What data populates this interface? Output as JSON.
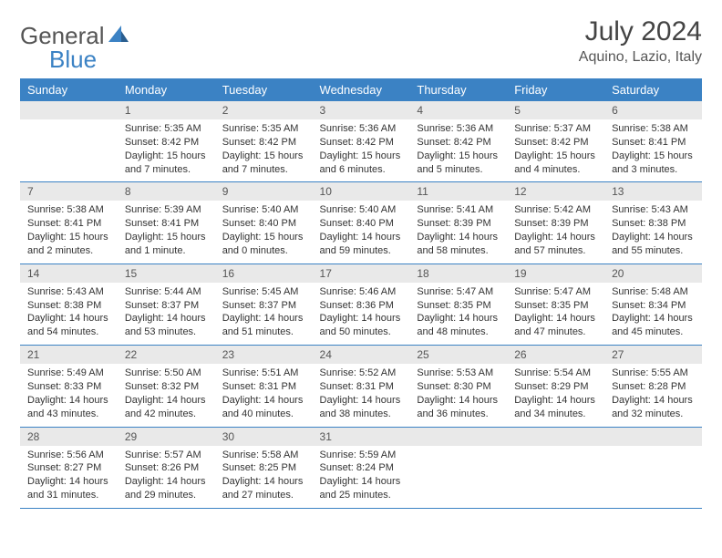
{
  "logo": {
    "text1": "General",
    "text2": "Blue"
  },
  "title": "July 2024",
  "location": "Aquino, Lazio, Italy",
  "colors": {
    "header_bg": "#3b82c4",
    "header_text": "#ffffff",
    "daynum_bg": "#e9e9e9",
    "row_border": "#3b82c4",
    "logo_blue": "#3b82c4",
    "body_text": "#333333"
  },
  "fonts": {
    "title_size": 30,
    "location_size": 16,
    "dayheader_size": 13,
    "daynum_size": 12,
    "content_size": 11
  },
  "day_headers": [
    "Sunday",
    "Monday",
    "Tuesday",
    "Wednesday",
    "Thursday",
    "Friday",
    "Saturday"
  ],
  "weeks": [
    [
      null,
      {
        "n": "1",
        "sunrise": "5:35 AM",
        "sunset": "8:42 PM",
        "daylight": "15 hours and 7 minutes."
      },
      {
        "n": "2",
        "sunrise": "5:35 AM",
        "sunset": "8:42 PM",
        "daylight": "15 hours and 7 minutes."
      },
      {
        "n": "3",
        "sunrise": "5:36 AM",
        "sunset": "8:42 PM",
        "daylight": "15 hours and 6 minutes."
      },
      {
        "n": "4",
        "sunrise": "5:36 AM",
        "sunset": "8:42 PM",
        "daylight": "15 hours and 5 minutes."
      },
      {
        "n": "5",
        "sunrise": "5:37 AM",
        "sunset": "8:42 PM",
        "daylight": "15 hours and 4 minutes."
      },
      {
        "n": "6",
        "sunrise": "5:38 AM",
        "sunset": "8:41 PM",
        "daylight": "15 hours and 3 minutes."
      }
    ],
    [
      {
        "n": "7",
        "sunrise": "5:38 AM",
        "sunset": "8:41 PM",
        "daylight": "15 hours and 2 minutes."
      },
      {
        "n": "8",
        "sunrise": "5:39 AM",
        "sunset": "8:41 PM",
        "daylight": "15 hours and 1 minute."
      },
      {
        "n": "9",
        "sunrise": "5:40 AM",
        "sunset": "8:40 PM",
        "daylight": "15 hours and 0 minutes."
      },
      {
        "n": "10",
        "sunrise": "5:40 AM",
        "sunset": "8:40 PM",
        "daylight": "14 hours and 59 minutes."
      },
      {
        "n": "11",
        "sunrise": "5:41 AM",
        "sunset": "8:39 PM",
        "daylight": "14 hours and 58 minutes."
      },
      {
        "n": "12",
        "sunrise": "5:42 AM",
        "sunset": "8:39 PM",
        "daylight": "14 hours and 57 minutes."
      },
      {
        "n": "13",
        "sunrise": "5:43 AM",
        "sunset": "8:38 PM",
        "daylight": "14 hours and 55 minutes."
      }
    ],
    [
      {
        "n": "14",
        "sunrise": "5:43 AM",
        "sunset": "8:38 PM",
        "daylight": "14 hours and 54 minutes."
      },
      {
        "n": "15",
        "sunrise": "5:44 AM",
        "sunset": "8:37 PM",
        "daylight": "14 hours and 53 minutes."
      },
      {
        "n": "16",
        "sunrise": "5:45 AM",
        "sunset": "8:37 PM",
        "daylight": "14 hours and 51 minutes."
      },
      {
        "n": "17",
        "sunrise": "5:46 AM",
        "sunset": "8:36 PM",
        "daylight": "14 hours and 50 minutes."
      },
      {
        "n": "18",
        "sunrise": "5:47 AM",
        "sunset": "8:35 PM",
        "daylight": "14 hours and 48 minutes."
      },
      {
        "n": "19",
        "sunrise": "5:47 AM",
        "sunset": "8:35 PM",
        "daylight": "14 hours and 47 minutes."
      },
      {
        "n": "20",
        "sunrise": "5:48 AM",
        "sunset": "8:34 PM",
        "daylight": "14 hours and 45 minutes."
      }
    ],
    [
      {
        "n": "21",
        "sunrise": "5:49 AM",
        "sunset": "8:33 PM",
        "daylight": "14 hours and 43 minutes."
      },
      {
        "n": "22",
        "sunrise": "5:50 AM",
        "sunset": "8:32 PM",
        "daylight": "14 hours and 42 minutes."
      },
      {
        "n": "23",
        "sunrise": "5:51 AM",
        "sunset": "8:31 PM",
        "daylight": "14 hours and 40 minutes."
      },
      {
        "n": "24",
        "sunrise": "5:52 AM",
        "sunset": "8:31 PM",
        "daylight": "14 hours and 38 minutes."
      },
      {
        "n": "25",
        "sunrise": "5:53 AM",
        "sunset": "8:30 PM",
        "daylight": "14 hours and 36 minutes."
      },
      {
        "n": "26",
        "sunrise": "5:54 AM",
        "sunset": "8:29 PM",
        "daylight": "14 hours and 34 minutes."
      },
      {
        "n": "27",
        "sunrise": "5:55 AM",
        "sunset": "8:28 PM",
        "daylight": "14 hours and 32 minutes."
      }
    ],
    [
      {
        "n": "28",
        "sunrise": "5:56 AM",
        "sunset": "8:27 PM",
        "daylight": "14 hours and 31 minutes."
      },
      {
        "n": "29",
        "sunrise": "5:57 AM",
        "sunset": "8:26 PM",
        "daylight": "14 hours and 29 minutes."
      },
      {
        "n": "30",
        "sunrise": "5:58 AM",
        "sunset": "8:25 PM",
        "daylight": "14 hours and 27 minutes."
      },
      {
        "n": "31",
        "sunrise": "5:59 AM",
        "sunset": "8:24 PM",
        "daylight": "14 hours and 25 minutes."
      },
      null,
      null,
      null
    ]
  ],
  "labels": {
    "sunrise": "Sunrise:",
    "sunset": "Sunset:",
    "daylight": "Daylight:"
  }
}
